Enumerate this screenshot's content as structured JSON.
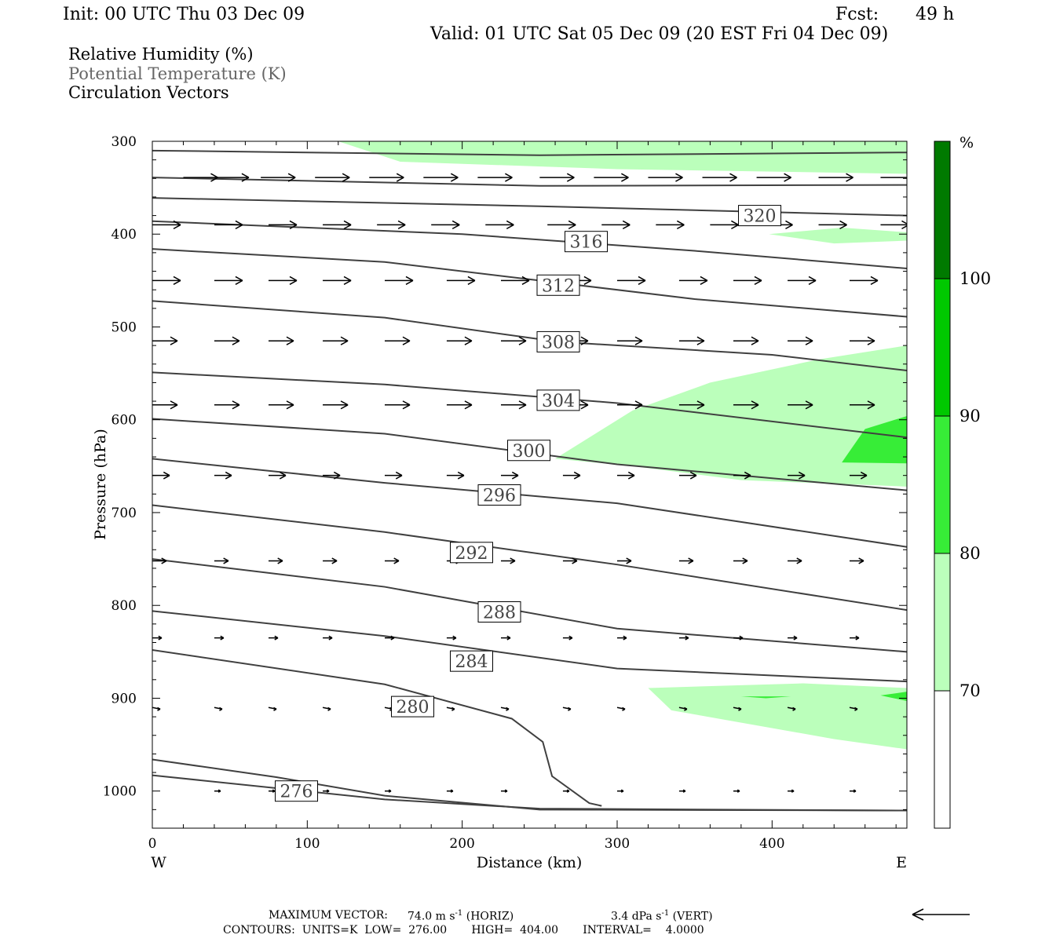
{
  "header": {
    "init": "Init: 00 UTC Thu 03 Dec 09",
    "fcst_label": "Fcst:",
    "fcst_value": "49 h",
    "valid": "Valid: 01 UTC Sat 05 Dec 09 (20 EST Fri 04 Dec 09)"
  },
  "legend": {
    "rh": "Relative Humidity (%)",
    "theta": "Potential Temperature (K)",
    "vectors": "Circulation Vectors"
  },
  "footer": {
    "max_vector_label": "MAXIMUM VECTOR:",
    "horiz_value": "74.0 m s",
    "horiz_unit": "(HORIZ)",
    "vert_value": "3.4 dPa s",
    "vert_unit": "(VERT)",
    "exponent": "-1",
    "contours": "CONTOURS:  UNITS=K  LOW=  276.00       HIGH=  404.00       INTERVAL=    4.0000"
  },
  "colors": {
    "rh70": "#bbffbb",
    "rh80": "#37ed37",
    "rh90": "#00c800",
    "rh100": "#007a00",
    "contour": "#404040"
  },
  "chart_data": {
    "type": "cross-section",
    "xlabel": "Distance (km)",
    "ylabel": "Pressure (hPa)",
    "xlim": [
      0,
      487
    ],
    "ylim": [
      1040,
      300
    ],
    "x_ticks": [
      0,
      100,
      200,
      300,
      400
    ],
    "y_ticks": [
      300,
      400,
      500,
      600,
      700,
      800,
      900,
      1000
    ],
    "x_end_labels": [
      "W",
      "E"
    ],
    "colorbar": {
      "unit": "%",
      "levels": [
        70,
        80,
        90,
        100
      ]
    },
    "contours": [
      {
        "label": "320",
        "label_at": [
          392,
          380
        ],
        "points": [
          [
            0,
            310
          ],
          [
            250,
            315
          ],
          [
            487,
            312
          ]
        ]
      },
      {
        "label": "",
        "label_at": null,
        "points": [
          [
            0,
            339
          ],
          [
            250,
            348
          ],
          [
            487,
            347
          ]
        ]
      },
      {
        "label": "",
        "label_at": null,
        "points": [
          [
            0,
            361
          ],
          [
            250,
            370
          ],
          [
            487,
            380
          ]
        ]
      },
      {
        "label": "316",
        "label_at": [
          280,
          408
        ],
        "points": [
          [
            0,
            386
          ],
          [
            200,
            400
          ],
          [
            350,
            418
          ],
          [
            487,
            437
          ]
        ]
      },
      {
        "label": "312",
        "label_at": [
          262,
          455
        ],
        "points": [
          [
            0,
            416
          ],
          [
            150,
            430
          ],
          [
            250,
            450
          ],
          [
            350,
            470
          ],
          [
            487,
            489
          ]
        ]
      },
      {
        "label": "308",
        "label_at": [
          262,
          516
        ],
        "points": [
          [
            0,
            472
          ],
          [
            150,
            490
          ],
          [
            262,
            516
          ],
          [
            400,
            530
          ],
          [
            487,
            547
          ]
        ]
      },
      {
        "label": "304",
        "label_at": [
          262,
          579
        ],
        "points": [
          [
            0,
            549
          ],
          [
            150,
            562
          ],
          [
            300,
            582
          ],
          [
            487,
            619
          ]
        ]
      },
      {
        "label": "300",
        "label_at": [
          243,
          633
        ],
        "points": [
          [
            0,
            599
          ],
          [
            150,
            615
          ],
          [
            300,
            648
          ],
          [
            487,
            676
          ]
        ]
      },
      {
        "label": "296",
        "label_at": [
          224,
          681
        ],
        "points": [
          [
            0,
            642
          ],
          [
            150,
            668
          ],
          [
            300,
            690
          ],
          [
            487,
            737
          ]
        ]
      },
      {
        "label": "292",
        "label_at": [
          206,
          743
        ],
        "points": [
          [
            0,
            692
          ],
          [
            150,
            721
          ],
          [
            300,
            756
          ],
          [
            487,
            805
          ]
        ]
      },
      {
        "label": "288",
        "label_at": [
          224,
          807
        ],
        "points": [
          [
            0,
            750
          ],
          [
            150,
            780
          ],
          [
            300,
            825
          ],
          [
            487,
            850
          ]
        ]
      },
      {
        "label": "284",
        "label_at": [
          206,
          860
        ],
        "points": [
          [
            0,
            806
          ],
          [
            150,
            833
          ],
          [
            300,
            868
          ],
          [
            487,
            882
          ]
        ]
      },
      {
        "label": "280",
        "label_at": [
          168,
          909
        ],
        "points": [
          [
            0,
            848
          ],
          [
            150,
            885
          ],
          [
            232,
            922
          ],
          [
            252,
            947
          ],
          [
            258,
            984
          ],
          [
            282,
            1013
          ],
          [
            290,
            1016
          ]
        ]
      },
      {
        "label": "276",
        "label_at": [
          93,
          1000
        ],
        "points": [
          [
            0,
            966
          ],
          [
            80,
            985
          ],
          [
            150,
            1005
          ],
          [
            250,
            1020
          ],
          [
            487,
            1021
          ]
        ]
      },
      {
        "label": "",
        "label_at": null,
        "points": [
          [
            0,
            983
          ],
          [
            150,
            1009
          ],
          [
            250,
            1019
          ],
          [
            487,
            1021
          ]
        ]
      }
    ],
    "rh_regions": [
      {
        "level": 70,
        "points": [
          [
            120,
            300
          ],
          [
            487,
            300
          ],
          [
            487,
            335
          ],
          [
            300,
            330
          ],
          [
            160,
            322
          ]
        ]
      },
      {
        "level": 70,
        "points": [
          [
            398,
            400
          ],
          [
            445,
            393
          ],
          [
            487,
            398
          ],
          [
            487,
            407
          ],
          [
            440,
            410
          ]
        ]
      },
      {
        "level": 70,
        "points": [
          [
            260,
            642
          ],
          [
            310,
            590
          ],
          [
            360,
            560
          ],
          [
            430,
            535
          ],
          [
            487,
            520
          ],
          [
            487,
            672
          ],
          [
            380,
            665
          ],
          [
            310,
            650
          ]
        ]
      },
      {
        "level": 70,
        "points": [
          [
            320,
            889
          ],
          [
            420,
            884
          ],
          [
            487,
            889
          ],
          [
            487,
            955
          ],
          [
            440,
            944
          ],
          [
            335,
            913
          ]
        ]
      },
      {
        "level": 80,
        "points": [
          [
            445,
            646
          ],
          [
            460,
            610
          ],
          [
            487,
            596
          ],
          [
            487,
            647
          ]
        ]
      },
      {
        "level": 80,
        "points": [
          [
            380,
            898
          ],
          [
            412,
            898
          ],
          [
            396,
            900
          ]
        ]
      },
      {
        "level": 80,
        "points": [
          [
            470,
            897
          ],
          [
            487,
            893
          ],
          [
            487,
            903
          ]
        ]
      }
    ],
    "vectors": [
      {
        "p": 339,
        "xs": [
          20,
          40,
          70,
          105,
          140,
          175,
          210,
          250,
          285,
          320,
          355,
          390,
          430,
          470
        ],
        "u": 22,
        "w": 0
      },
      {
        "p": 390,
        "xs": [
          0,
          40,
          75,
          110,
          145,
          180,
          215,
          255,
          290,
          325,
          360,
          395,
          430,
          470
        ],
        "u": 18,
        "w": 0
      },
      {
        "p": 450,
        "xs": [
          0,
          40,
          75,
          110,
          150,
          190,
          225,
          265,
          300,
          340,
          375,
          410,
          450
        ],
        "u": 18,
        "w": 0
      },
      {
        "p": 515,
        "xs": [
          0,
          40,
          75,
          110,
          150,
          190,
          225,
          265,
          300,
          340,
          375,
          410,
          450
        ],
        "u": 16,
        "w": 0
      },
      {
        "p": 584,
        "xs": [
          0,
          40,
          75,
          110,
          150,
          190,
          225,
          265,
          300,
          340,
          375,
          410,
          450
        ],
        "u": 16,
        "w": 0
      },
      {
        "p": 660,
        "xs": [
          0,
          40,
          75,
          110,
          150,
          190,
          225,
          265,
          300,
          340,
          375,
          410,
          450
        ],
        "u": 11,
        "w": 0
      },
      {
        "p": 752,
        "xs": [
          0,
          40,
          75,
          110,
          150,
          190,
          225,
          265,
          300,
          340,
          375,
          410,
          450
        ],
        "u": 9,
        "w": 0
      },
      {
        "p": 835,
        "xs": [
          0,
          40,
          75,
          110,
          150,
          190,
          225,
          265,
          300,
          340,
          375,
          410,
          450
        ],
        "u": 6,
        "w": 0
      },
      {
        "p": 910,
        "xs": [
          0,
          40,
          75,
          110,
          150,
          190,
          225,
          265,
          300,
          340,
          375,
          410,
          450
        ],
        "u": 5,
        "w": 1
      },
      {
        "p": 1000,
        "xs": [
          40,
          75,
          110,
          150,
          190,
          225,
          265,
          300,
          340,
          375,
          410,
          450
        ],
        "u": 4,
        "w": 0
      }
    ],
    "reference_vector_direction": "left"
  }
}
